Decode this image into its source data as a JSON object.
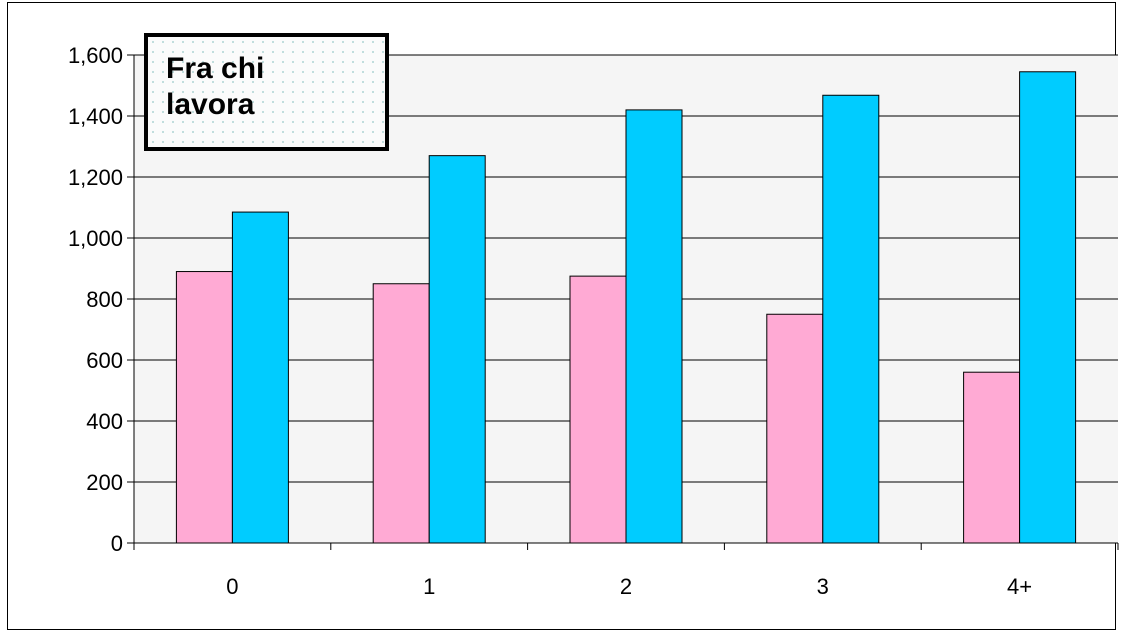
{
  "chart_data": {
    "type": "bar",
    "categories": [
      "0",
      "1",
      "2",
      "3",
      "4+"
    ],
    "series": [
      {
        "values": [
          890,
          850,
          875,
          750,
          560
        ],
        "color": "#ffaad4"
      },
      {
        "values": [
          1085,
          1270,
          1420,
          1468,
          1545
        ],
        "color": "#00ccff"
      }
    ],
    "ylim": [
      0,
      1600
    ],
    "yticks": [
      "0",
      "200",
      "400",
      "600",
      "800",
      "1,000",
      "1,200",
      "1,400",
      "1,600"
    ],
    "ytick_values": [
      0,
      200,
      400,
      600,
      800,
      1000,
      1200,
      1400,
      1600
    ],
    "annotation": "Fra chi\nlavora",
    "plot_background": "#f5f5f5",
    "grid": true
  }
}
